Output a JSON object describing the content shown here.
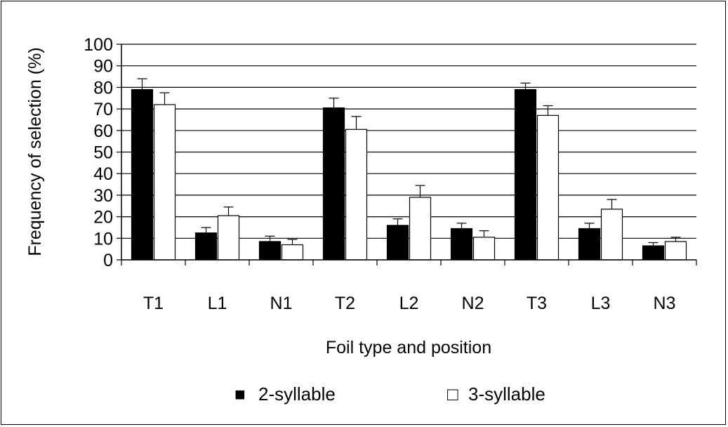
{
  "chart_data": {
    "type": "bar",
    "categories": [
      "T1",
      "L1",
      "N1",
      "T2",
      "L2",
      "N2",
      "T3",
      "L3",
      "N3"
    ],
    "series": [
      {
        "name": "2-syllable",
        "color": "#000000",
        "values": [
          79,
          12.5,
          8.5,
          70.5,
          16,
          14.5,
          79,
          14.5,
          6.5
        ],
        "error": [
          5,
          2.5,
          2.5,
          4.5,
          3,
          2.5,
          3,
          2.5,
          1.5
        ]
      },
      {
        "name": "3-syllable",
        "color": "#ffffff",
        "values": [
          72,
          20.5,
          7,
          60.5,
          29,
          10.5,
          67,
          23.5,
          8.5
        ],
        "error": [
          5.5,
          4,
          2.5,
          6,
          5.5,
          3,
          4.5,
          4.5,
          2
        ]
      }
    ],
    "xlabel": "Foil type and position",
    "ylabel": "Frequency of selection (%)",
    "ylim": [
      0,
      100
    ],
    "yticks": [
      "0",
      "10",
      "20",
      "30",
      "40",
      "50",
      "60",
      "70",
      "80",
      "90",
      "100"
    ],
    "grid": "horizontal",
    "legend_position": "bottom",
    "legend": {
      "markers": [
        "■",
        "□"
      ],
      "labels": [
        "2-syllable",
        "3-syllable"
      ]
    }
  }
}
